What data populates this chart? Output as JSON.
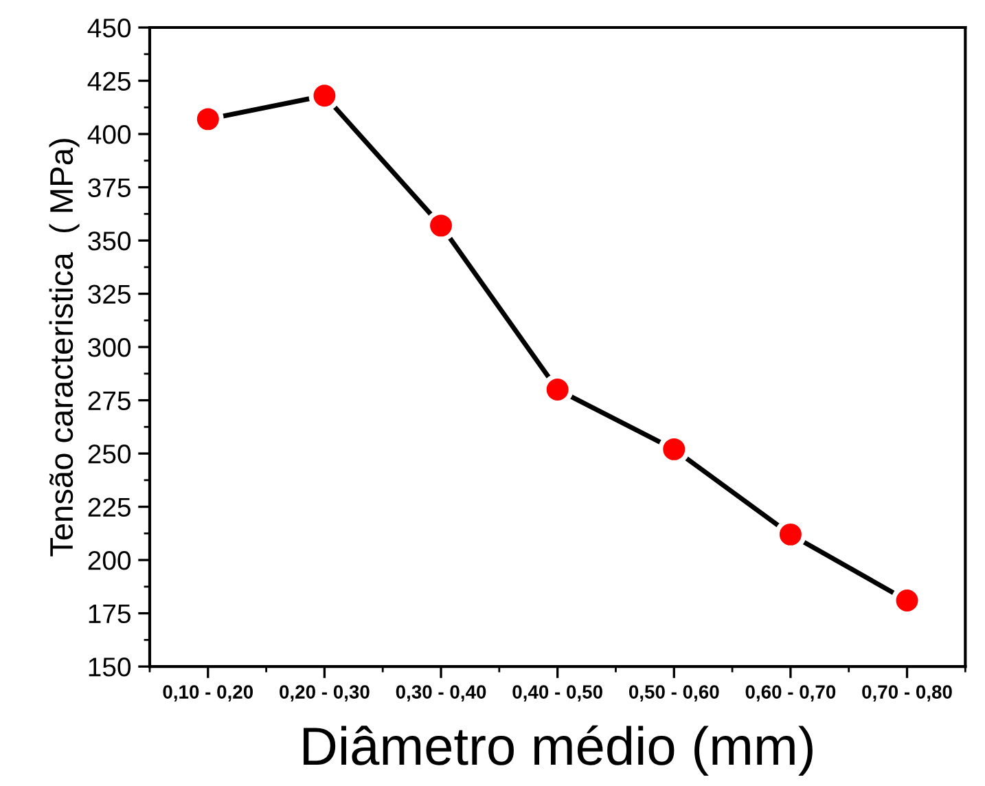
{
  "chart_data": {
    "type": "line",
    "xlabel": "Diâmetro médio (mm)",
    "ylabel": "Tensão caracteristica  ( MPa)",
    "categories": [
      "0,10 - 0,20",
      "0,20 - 0,30",
      "0,30 - 0,40",
      "0,40 - 0,50",
      "0,50 - 0,60",
      "0,60 - 0,70",
      "0,70 - 0,80"
    ],
    "series": [
      {
        "color": "#000000",
        "values": [
          407,
          418,
          357,
          280,
          252,
          212,
          181
        ]
      }
    ],
    "marker": "circle",
    "line_style": "solid",
    "ylim": [
      150,
      450
    ],
    "yticks": [
      150,
      175,
      200,
      225,
      250,
      275,
      300,
      325,
      350,
      375,
      400,
      425,
      450
    ],
    "grid": false,
    "legend": false
  }
}
